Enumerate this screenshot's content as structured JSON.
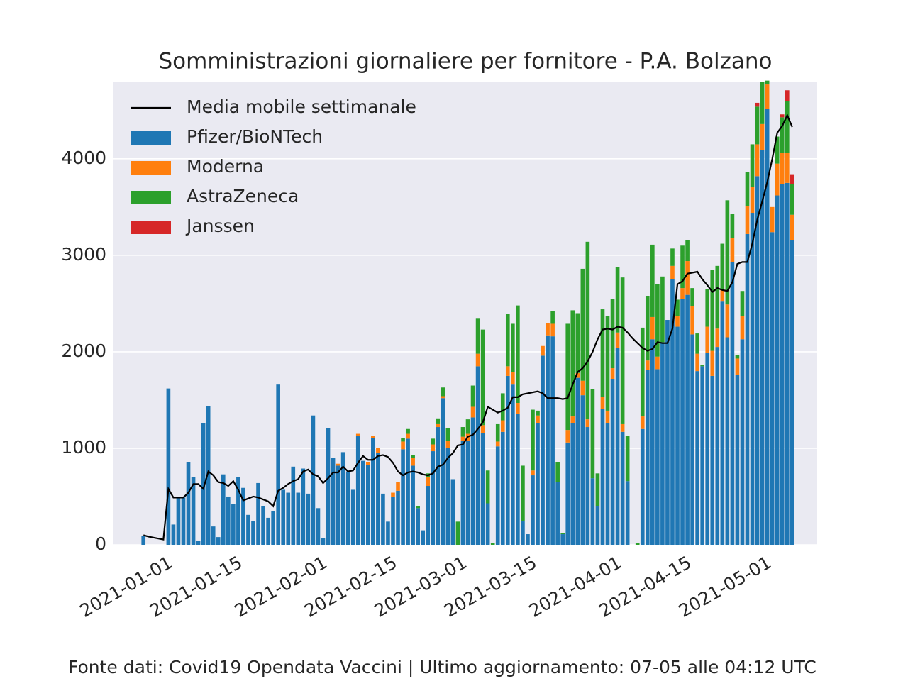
{
  "chart_data": {
    "type": "bar",
    "stacked": true,
    "title": "Somministrazioni giornaliere per fornitore - P.A. Bolzano",
    "footer": "Fonte dati: Covid19 Opendata Vaccini | Ultimo aggiornamento: 07-05 alle 04:12 UTC",
    "x": [
      "2020-12-27",
      "2020-12-28",
      "2020-12-29",
      "2020-12-30",
      "2020-12-31",
      "2021-01-01",
      "2021-01-02",
      "2021-01-03",
      "2021-01-04",
      "2021-01-05",
      "2021-01-06",
      "2021-01-07",
      "2021-01-08",
      "2021-01-09",
      "2021-01-10",
      "2021-01-11",
      "2021-01-12",
      "2021-01-13",
      "2021-01-14",
      "2021-01-15",
      "2021-01-16",
      "2021-01-17",
      "2021-01-18",
      "2021-01-19",
      "2021-01-20",
      "2021-01-21",
      "2021-01-22",
      "2021-01-23",
      "2021-01-24",
      "2021-01-25",
      "2021-01-26",
      "2021-01-27",
      "2021-01-28",
      "2021-01-29",
      "2021-01-30",
      "2021-01-31",
      "2021-02-01",
      "2021-02-02",
      "2021-02-03",
      "2021-02-04",
      "2021-02-05",
      "2021-02-06",
      "2021-02-07",
      "2021-02-08",
      "2021-02-09",
      "2021-02-10",
      "2021-02-11",
      "2021-02-12",
      "2021-02-13",
      "2021-02-14",
      "2021-02-15",
      "2021-02-16",
      "2021-02-17",
      "2021-02-18",
      "2021-02-19",
      "2021-02-20",
      "2021-02-21",
      "2021-02-22",
      "2021-02-23",
      "2021-02-24",
      "2021-02-25",
      "2021-02-26",
      "2021-02-27",
      "2021-02-28",
      "2021-03-01",
      "2021-03-02",
      "2021-03-03",
      "2021-03-04",
      "2021-03-05",
      "2021-03-06",
      "2021-03-07",
      "2021-03-08",
      "2021-03-09",
      "2021-03-10",
      "2021-03-11",
      "2021-03-12",
      "2021-03-13",
      "2021-03-14",
      "2021-03-15",
      "2021-03-16",
      "2021-03-17",
      "2021-03-18",
      "2021-03-19",
      "2021-03-20",
      "2021-03-21",
      "2021-03-22",
      "2021-03-23",
      "2021-03-24",
      "2021-03-25",
      "2021-03-26",
      "2021-03-27",
      "2021-03-28",
      "2021-03-29",
      "2021-03-30",
      "2021-03-31",
      "2021-04-01",
      "2021-04-02",
      "2021-04-03",
      "2021-04-04",
      "2021-04-05",
      "2021-04-06",
      "2021-04-07",
      "2021-04-08",
      "2021-04-09",
      "2021-04-10",
      "2021-04-11",
      "2021-04-12",
      "2021-04-13",
      "2021-04-14",
      "2021-04-15",
      "2021-04-16",
      "2021-04-17",
      "2021-04-18",
      "2021-04-19",
      "2021-04-20",
      "2021-04-21",
      "2021-04-22",
      "2021-04-23",
      "2021-04-24",
      "2021-04-25",
      "2021-04-26",
      "2021-04-27",
      "2021-04-28",
      "2021-04-29",
      "2021-04-30",
      "2021-05-01",
      "2021-05-02",
      "2021-05-03",
      "2021-05-04",
      "2021-05-05",
      "2021-05-06"
    ],
    "series": [
      {
        "name": "Media mobile settimanale",
        "type": "line",
        "color": "#000000",
        "values": [
          100,
          85,
          75,
          65,
          55,
          580,
          490,
          490,
          490,
          540,
          630,
          630,
          580,
          760,
          720,
          650,
          640,
          610,
          660,
          570,
          460,
          480,
          500,
          490,
          470,
          450,
          400,
          560,
          590,
          630,
          660,
          680,
          760,
          780,
          730,
          710,
          640,
          690,
          750,
          750,
          810,
          760,
          770,
          850,
          920,
          880,
          880,
          920,
          930,
          910,
          850,
          760,
          720,
          750,
          760,
          750,
          730,
          720,
          740,
          810,
          830,
          900,
          950,
          1030,
          1040,
          1120,
          1140,
          1200,
          1270,
          1430,
          1400,
          1370,
          1390,
          1420,
          1530,
          1530,
          1560,
          1570,
          1580,
          1590,
          1570,
          1520,
          1520,
          1520,
          1510,
          1520,
          1660,
          1790,
          1830,
          1900,
          2000,
          2130,
          2230,
          2240,
          2230,
          2260,
          2250,
          2200,
          2140,
          2090,
          2040,
          2010,
          2030,
          2100,
          2090,
          2090,
          2240,
          2700,
          2730,
          2810,
          2820,
          2830,
          2750,
          2690,
          2620,
          2660,
          2640,
          2630,
          2720,
          2910,
          2930,
          2930,
          3120,
          3370,
          3560,
          3760,
          4000,
          4270,
          4340,
          4450,
          4330
        ]
      },
      {
        "name": "Pfizer/BioNTech",
        "color": "#1f77b4",
        "values": [
          95,
          0,
          0,
          0,
          0,
          1620,
          210,
          490,
          490,
          860,
          700,
          40,
          1260,
          1440,
          190,
          80,
          730,
          500,
          420,
          700,
          590,
          310,
          250,
          640,
          400,
          280,
          350,
          1660,
          570,
          540,
          810,
          540,
          790,
          530,
          1340,
          380,
          70,
          1210,
          900,
          820,
          960,
          760,
          570,
          1130,
          870,
          830,
          1110,
          950,
          530,
          240,
          500,
          560,
          990,
          1100,
          820,
          380,
          150,
          610,
          970,
          1220,
          1520,
          1000,
          680,
          0,
          1080,
          1080,
          1320,
          1850,
          1160,
          430,
          0,
          1020,
          1170,
          1750,
          1660,
          1360,
          250,
          110,
          720,
          1260,
          1960,
          2170,
          2160,
          650,
          110,
          1060,
          1260,
          1730,
          1550,
          1220,
          690,
          400,
          1410,
          1260,
          1720,
          2040,
          1170,
          660,
          0,
          0,
          1200,
          1810,
          2130,
          1820,
          2100,
          2330,
          2750,
          2260,
          2550,
          2590,
          2180,
          1800,
          1850,
          1990,
          1750,
          2050,
          2520,
          2150,
          2930,
          1760,
          2130,
          3220,
          3440,
          3820,
          4090,
          4520,
          3240,
          3620,
          3740,
          3750,
          3160
        ]
      },
      {
        "name": "Moderna",
        "color": "#ff7f0e",
        "values": [
          0,
          0,
          0,
          0,
          0,
          0,
          0,
          0,
          0,
          0,
          0,
          0,
          0,
          0,
          0,
          0,
          0,
          0,
          0,
          0,
          0,
          0,
          0,
          0,
          0,
          0,
          0,
          0,
          0,
          0,
          0,
          0,
          0,
          0,
          0,
          0,
          0,
          0,
          0,
          20,
          0,
          0,
          0,
          20,
          0,
          30,
          20,
          50,
          0,
          0,
          40,
          90,
          80,
          50,
          80,
          0,
          0,
          90,
          70,
          30,
          20,
          80,
          0,
          0,
          40,
          70,
          110,
          130,
          80,
          0,
          0,
          50,
          120,
          100,
          130,
          110,
          0,
          0,
          50,
          80,
          100,
          130,
          130,
          0,
          0,
          130,
          70,
          50,
          150,
          80,
          0,
          0,
          120,
          130,
          110,
          160,
          80,
          0,
          0,
          0,
          130,
          100,
          230,
          130,
          0,
          0,
          140,
          110,
          110,
          350,
          290,
          180,
          0,
          270,
          260,
          190,
          120,
          340,
          250,
          170,
          240,
          290,
          270,
          330,
          270,
          250,
          260,
          330,
          320,
          310,
          260
        ]
      },
      {
        "name": "AstraZeneca",
        "color": "#2ca02c",
        "values": [
          0,
          0,
          0,
          0,
          0,
          0,
          0,
          0,
          0,
          0,
          0,
          0,
          0,
          0,
          0,
          0,
          0,
          0,
          0,
          0,
          0,
          0,
          0,
          0,
          0,
          0,
          0,
          0,
          0,
          0,
          0,
          0,
          0,
          0,
          0,
          0,
          0,
          0,
          0,
          0,
          0,
          0,
          0,
          0,
          0,
          0,
          0,
          0,
          0,
          0,
          0,
          0,
          40,
          50,
          30,
          20,
          0,
          40,
          60,
          60,
          90,
          130,
          0,
          240,
          100,
          150,
          220,
          370,
          990,
          340,
          20,
          180,
          280,
          540,
          500,
          1010,
          570,
          0,
          630,
          50,
          0,
          0,
          130,
          210,
          10,
          1100,
          1100,
          620,
          1160,
          1840,
          920,
          340,
          910,
          980,
          720,
          680,
          1520,
          470,
          0,
          20,
          920,
          670,
          750,
          750,
          680,
          0,
          180,
          170,
          440,
          220,
          190,
          210,
          10,
          390,
          840,
          650,
          480,
          1080,
          250,
          40,
          260,
          350,
          440,
          390,
          440,
          40,
          0,
          280,
          370,
          540,
          320
        ]
      },
      {
        "name": "Janssen",
        "color": "#d62728",
        "values": [
          0,
          0,
          0,
          0,
          0,
          0,
          0,
          0,
          0,
          0,
          0,
          0,
          0,
          0,
          0,
          0,
          0,
          0,
          0,
          0,
          0,
          0,
          0,
          0,
          0,
          0,
          0,
          0,
          0,
          0,
          0,
          0,
          0,
          0,
          0,
          0,
          0,
          0,
          0,
          0,
          0,
          0,
          0,
          0,
          0,
          0,
          0,
          0,
          0,
          0,
          0,
          0,
          0,
          0,
          0,
          0,
          0,
          0,
          0,
          0,
          0,
          0,
          0,
          0,
          0,
          0,
          0,
          0,
          0,
          0,
          0,
          0,
          0,
          0,
          0,
          0,
          0,
          0,
          0,
          0,
          0,
          0,
          0,
          0,
          0,
          0,
          0,
          0,
          0,
          0,
          0,
          0,
          0,
          0,
          0,
          0,
          0,
          0,
          0,
          0,
          0,
          0,
          0,
          0,
          0,
          0,
          0,
          0,
          0,
          0,
          0,
          0,
          0,
          0,
          0,
          0,
          0,
          0,
          0,
          0,
          0,
          0,
          0,
          40,
          0,
          0,
          0,
          0,
          30,
          110,
          100
        ]
      }
    ],
    "xlim": [
      "2020-12-21",
      "2021-05-11"
    ],
    "xticks": [
      "2021-01-01",
      "2021-01-15",
      "2021-02-01",
      "2021-02-15",
      "2021-03-01",
      "2021-03-15",
      "2021-04-01",
      "2021-04-15",
      "2021-05-01"
    ],
    "ylim": [
      0,
      4800
    ],
    "yticks": [
      0,
      1000,
      2000,
      3000,
      4000
    ],
    "grid": "y",
    "legend": "upper left",
    "background": "#eaeaf2"
  }
}
